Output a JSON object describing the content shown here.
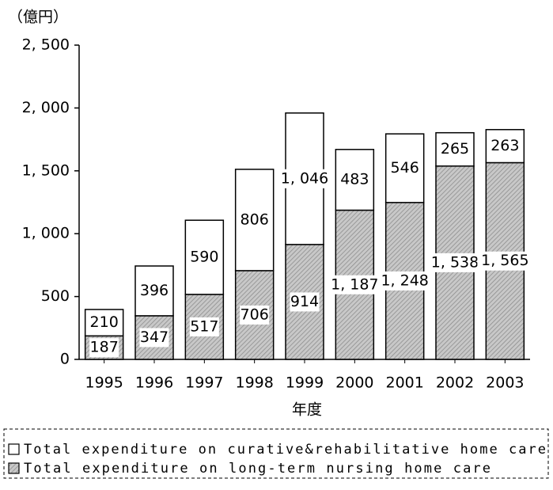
{
  "chart_data": {
    "type": "stacked_bar",
    "y_label": "（億円）",
    "x_label": "年度",
    "categories": [
      "1995",
      "1996",
      "1997",
      "1998",
      "1999",
      "2000",
      "2001",
      "2002",
      "2003"
    ],
    "series": [
      {
        "name": "Total expenditure on long-term nursing home care",
        "color": "#b0b0b0",
        "values": [
          187,
          347,
          517,
          706,
          914,
          1187,
          1248,
          1538,
          1565
        ],
        "value_labels": [
          "187",
          "347",
          "517",
          "706",
          "914",
          "1, 187",
          "1, 248",
          "1, 538",
          "1, 565"
        ]
      },
      {
        "name": "Total expenditure on curative&rehabilitative home care",
        "color": "#ffffff",
        "values": [
          210,
          396,
          590,
          806,
          1046,
          483,
          546,
          265,
          263
        ],
        "value_labels": [
          "210",
          "396",
          "590",
          "806",
          "1, 046",
          "483",
          "546",
          "265",
          "263"
        ]
      }
    ],
    "legend_order": [
      1,
      0
    ],
    "ylim": [
      0,
      2500
    ],
    "yticks": [
      0,
      500,
      {
        "value": 1000,
        "label": "1, 000"
      },
      {
        "value": 1500,
        "label": "1, 500"
      },
      {
        "value": 2000,
        "label": "2, 000"
      },
      {
        "value": 2500,
        "label": "2, 500"
      }
    ]
  }
}
